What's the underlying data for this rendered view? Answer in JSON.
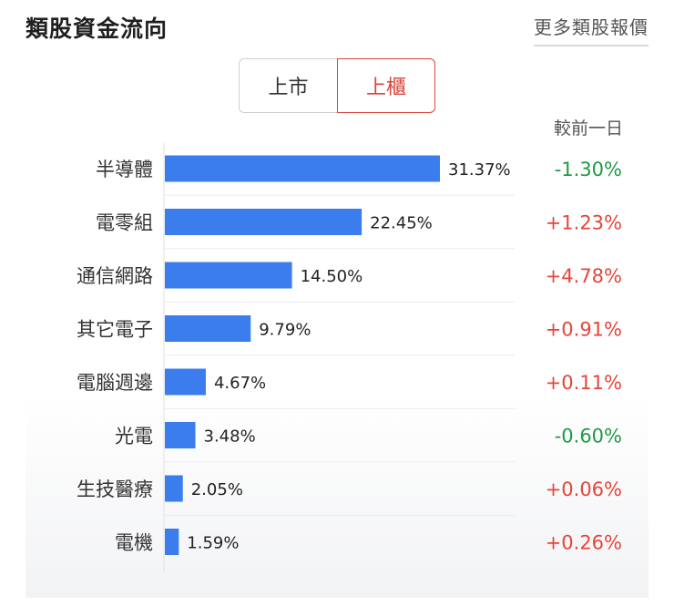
{
  "header": {
    "title": "類股資金流向",
    "more_link": "更多類股報價"
  },
  "tabs": [
    {
      "label": "上市",
      "active": false
    },
    {
      "label": "上櫃",
      "active": true
    }
  ],
  "change_column_header": "較前一日",
  "colors": {
    "bar": "#3b7ded",
    "up": "#e5453a",
    "down": "#1f9a45",
    "active_tab": "#d8453b"
  },
  "chart_data": {
    "type": "bar",
    "orientation": "horizontal",
    "categories": [
      "半導體",
      "電零組",
      "通信網路",
      "其它電子",
      "電腦週邊",
      "光電",
      "生技醫療",
      "電機"
    ],
    "values": [
      31.37,
      22.45,
      14.5,
      9.79,
      4.67,
      3.48,
      2.05,
      1.59
    ],
    "value_labels": [
      "31.37%",
      "22.45%",
      "14.50%",
      "9.79%",
      "4.67%",
      "3.48%",
      "2.05%",
      "1.59%"
    ],
    "change_labels": [
      "-1.30%",
      "+1.23%",
      "+4.78%",
      "+0.91%",
      "+0.11%",
      "-0.60%",
      "+0.06%",
      "+0.26%"
    ],
    "change_values": [
      -1.3,
      1.23,
      4.78,
      0.91,
      0.11,
      -0.6,
      0.06,
      0.26
    ],
    "xlim": [
      0,
      31.37
    ],
    "grid": true
  }
}
